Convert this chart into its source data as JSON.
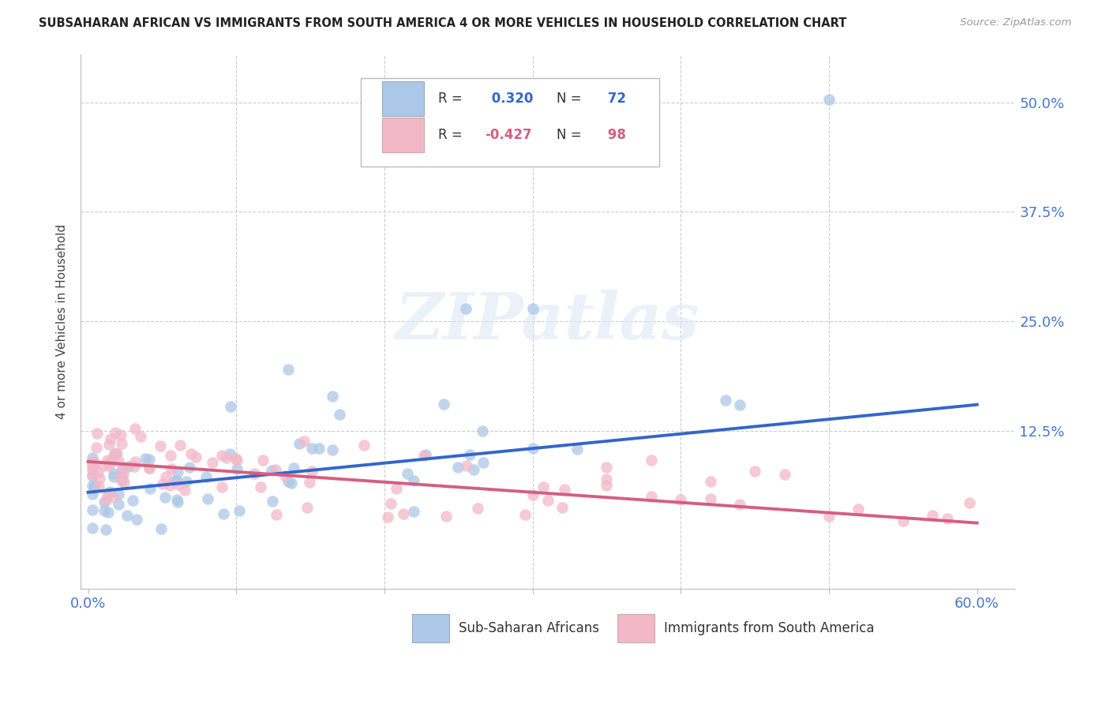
{
  "title": "SUBSAHARAN AFRICAN VS IMMIGRANTS FROM SOUTH AMERICA 4 OR MORE VEHICLES IN HOUSEHOLD CORRELATION CHART",
  "source": "Source: ZipAtlas.com",
  "ylabel": "4 or more Vehicles in Household",
  "blue_R": 0.32,
  "blue_N": 72,
  "pink_R": -0.427,
  "pink_N": 98,
  "blue_color": "#abc8e8",
  "pink_color": "#f2b8c8",
  "blue_line_color": "#3366cc",
  "pink_line_color": "#d45f80",
  "legend_label_blue": "Sub-Saharan Africans",
  "legend_label_pink": "Immigrants from South America",
  "watermark": "ZIPatlas",
  "tick_color": "#4477cc",
  "blue_line_start_y": 0.055,
  "blue_line_end_y": 0.155,
  "pink_line_start_y": 0.09,
  "pink_line_end_y": 0.02,
  "xlim_min": -0.005,
  "xlim_max": 0.625,
  "ylim_min": -0.055,
  "ylim_max": 0.555
}
